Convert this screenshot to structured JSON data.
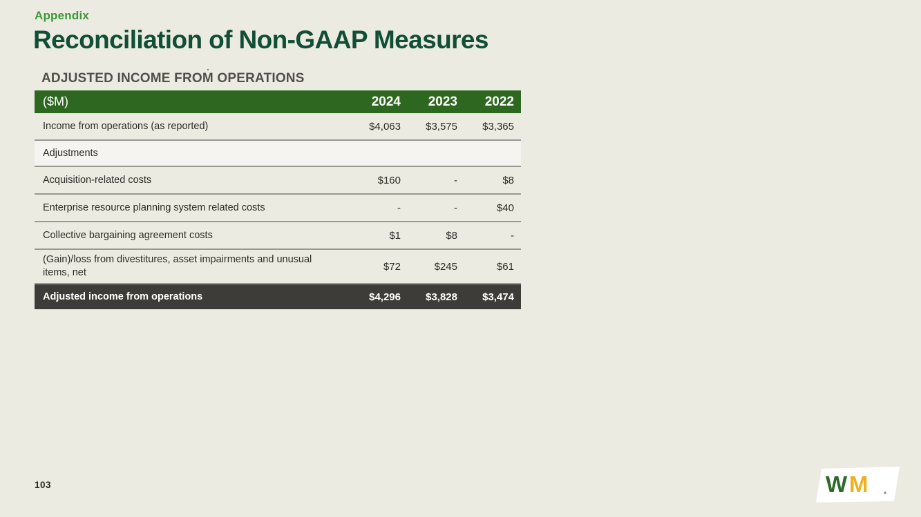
{
  "slide": {
    "eyebrow": "Appendix",
    "title": "Reconciliation of Non-GAAP Measures",
    "page_number": "103"
  },
  "table": {
    "section_title": "ADJUSTED INCOME FROM OPERATIONS",
    "unit_label": "($M)",
    "columns": [
      "2024",
      "2023",
      "2022"
    ],
    "rows": [
      {
        "type": "data",
        "label": "Income from operations (as reported)",
        "values": [
          "$4,063",
          "$3,575",
          "$3,365"
        ]
      },
      {
        "type": "section",
        "label": "Adjustments",
        "values": [
          "",
          "",
          ""
        ]
      },
      {
        "type": "data",
        "label": "Acquisition-related costs",
        "values": [
          "$160",
          "-",
          "$8"
        ]
      },
      {
        "type": "data",
        "label": "Enterprise resource planning system related costs",
        "values": [
          "-",
          "-",
          "$40"
        ]
      },
      {
        "type": "data",
        "label": "Collective bargaining agreement costs",
        "values": [
          "$1",
          "$8",
          "-"
        ]
      },
      {
        "type": "data",
        "label": "(Gain)/loss from divestitures, asset impairments and unusual items, net",
        "values": [
          "$72",
          "$245",
          "$61"
        ]
      },
      {
        "type": "total",
        "label": "Adjusted income from operations",
        "values": [
          "$4,296",
          "$3,828",
          "$3,474"
        ]
      }
    ]
  },
  "chart_data": {
    "type": "table",
    "title": "Adjusted Income from Operations ($M)",
    "categories": [
      "2024",
      "2023",
      "2022"
    ],
    "series": [
      {
        "name": "Income from operations (as reported)",
        "values": [
          4063,
          3575,
          3365
        ]
      },
      {
        "name": "Acquisition-related costs",
        "values": [
          160,
          null,
          8
        ]
      },
      {
        "name": "Enterprise resource planning system related costs",
        "values": [
          null,
          null,
          40
        ]
      },
      {
        "name": "Collective bargaining agreement costs",
        "values": [
          1,
          8,
          null
        ]
      },
      {
        "name": "(Gain)/loss from divestitures, asset impairments and unusual items, net",
        "values": [
          72,
          245,
          61
        ]
      },
      {
        "name": "Adjusted income from operations",
        "values": [
          4296,
          3828,
          3474
        ]
      }
    ]
  },
  "logo": {
    "letter_w": "W",
    "letter_m": "M",
    "w_color": "#2D6A2B",
    "m_color": "#EEB01E"
  },
  "colors": {
    "background": "#ECEBE1",
    "eyebrow_green": "#3C9838",
    "title_green": "#114E36",
    "header_green": "#2E671F",
    "total_charcoal": "#3E3C38",
    "divider_gray": "#9A988F",
    "section_row_bg": "#F5F4F0"
  }
}
